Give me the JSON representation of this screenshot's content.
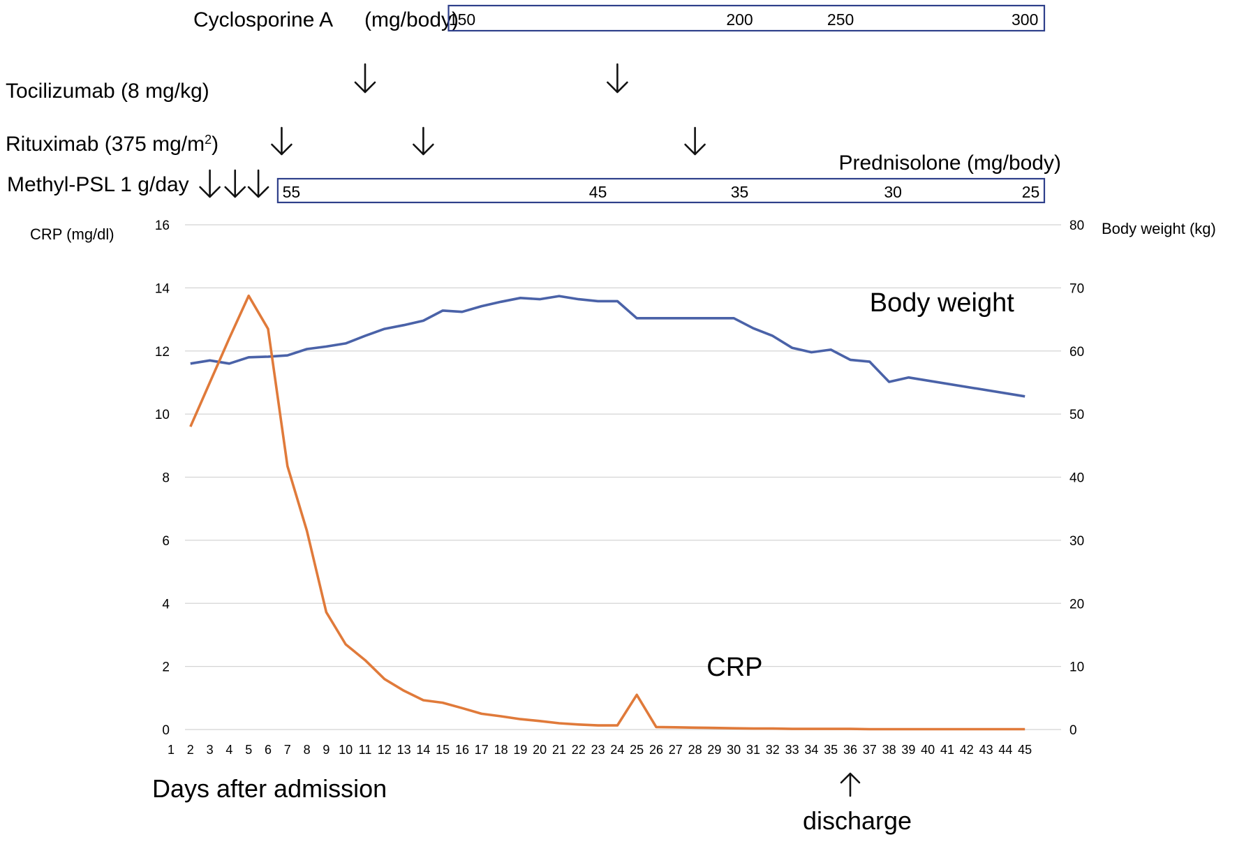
{
  "treatments": {
    "cyclosporine": {
      "label": "Cyclosporine A",
      "unit": "(mg/body)",
      "doses": [
        {
          "day": 16,
          "text": "150"
        },
        {
          "day": 30.3,
          "text": "200"
        },
        {
          "day": 35.5,
          "text": "250"
        },
        {
          "day": 45,
          "text": "300"
        }
      ],
      "start_day": 15.3,
      "end_day": 46
    },
    "tocilizumab": {
      "label": "Tocilizumab (8 mg/kg)",
      "days": [
        11,
        24
      ]
    },
    "rituximab": {
      "label": "Rituximab (375 mg/m",
      "sup": "2",
      "close": ")",
      "days": [
        6.7,
        14,
        28
      ]
    },
    "methyl_psl": {
      "label": "Methyl-PSL 1 g/day",
      "days": [
        3,
        4.3,
        5.5
      ]
    },
    "prednisolone": {
      "label": "Prednisolone (mg/body)",
      "doses": [
        {
          "day": 7.2,
          "text": "55"
        },
        {
          "day": 23,
          "text": "45"
        },
        {
          "day": 30.3,
          "text": "35"
        },
        {
          "day": 38.2,
          "text": "30"
        },
        {
          "day": 45.3,
          "text": "25"
        }
      ],
      "start_day": 6.5,
      "end_day": 46
    }
  },
  "chart_data": {
    "type": "line",
    "x_ticks": [
      1,
      2,
      3,
      4,
      5,
      6,
      7,
      8,
      9,
      10,
      11,
      12,
      13,
      14,
      15,
      16,
      17,
      18,
      19,
      20,
      21,
      22,
      23,
      24,
      25,
      26,
      27,
      28,
      29,
      30,
      31,
      32,
      33,
      34,
      35,
      36,
      37,
      38,
      39,
      40,
      41,
      42,
      43,
      44,
      45
    ],
    "xlabel": "Days after admission",
    "ylabel_left": "CRP (mg/dl)",
    "ylabel_right": "Body weight (kg)",
    "ylim_left": [
      0,
      16
    ],
    "ylim_right": [
      0,
      80
    ],
    "yticks_left": [
      0,
      2,
      4,
      6,
      8,
      10,
      12,
      14,
      16
    ],
    "yticks_right": [
      0,
      10,
      20,
      30,
      40,
      50,
      60,
      70,
      80
    ],
    "grid": true,
    "series": [
      {
        "name": "Body weight",
        "axis": "right",
        "color": "#4a62a8",
        "label_at": {
          "x": 37,
          "y": 66.3
        },
        "x": [
          2,
          3,
          4,
          5,
          6,
          7,
          8,
          9,
          10,
          11,
          12,
          13,
          14,
          15,
          16,
          17,
          18,
          19,
          20,
          21,
          22,
          23,
          24,
          25,
          26,
          27,
          28,
          29,
          30,
          31,
          32,
          33,
          34,
          35,
          36,
          37,
          38,
          39,
          45
        ],
        "y": [
          58.0,
          58.5,
          58.0,
          59.0,
          59.1,
          59.3,
          60.3,
          60.7,
          61.2,
          62.4,
          63.5,
          64.1,
          64.8,
          66.4,
          66.2,
          67.1,
          67.8,
          68.4,
          68.2,
          68.7,
          68.2,
          67.9,
          67.9,
          65.2,
          65.2,
          65.2,
          65.2,
          65.2,
          65.2,
          63.6,
          62.4,
          60.5,
          59.8,
          60.2,
          58.6,
          58.3,
          55.1,
          55.8,
          52.8
        ]
      },
      {
        "name": "CRP",
        "axis": "left",
        "color": "#e07a3a",
        "label_at": {
          "x": 28.6,
          "y": 1.7
        },
        "x": [
          2,
          3,
          4,
          5,
          6,
          7,
          8,
          9,
          10,
          11,
          12,
          13,
          14,
          15,
          16,
          17,
          18,
          19,
          20,
          21,
          22,
          23,
          24,
          25,
          26,
          27,
          28,
          29,
          30,
          31,
          32,
          33,
          34,
          35,
          36,
          37,
          38,
          39,
          40,
          41,
          42,
          43,
          44,
          45
        ],
        "y": [
          9.6,
          11.0,
          12.4,
          13.75,
          12.7,
          8.35,
          6.3,
          3.72,
          2.7,
          2.2,
          1.6,
          1.23,
          0.93,
          0.85,
          0.68,
          0.5,
          0.42,
          0.33,
          0.27,
          0.2,
          0.16,
          0.13,
          0.13,
          1.1,
          0.08,
          0.07,
          0.06,
          0.05,
          0.04,
          0.03,
          0.03,
          0.02,
          0.02,
          0.02,
          0.02,
          0.01,
          0.01,
          0.01,
          0.01,
          0.01,
          0.01,
          0.01,
          0.01,
          0.01
        ]
      }
    ]
  },
  "annotations": {
    "discharge": {
      "label": "discharge",
      "day": 36
    }
  }
}
